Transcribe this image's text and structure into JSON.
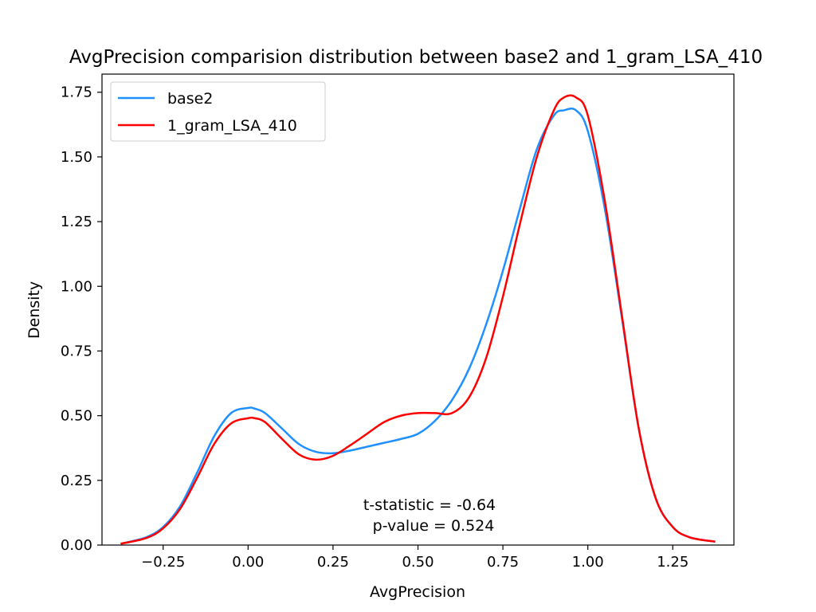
{
  "chart_data": {
    "type": "line",
    "title": "AvgPrecision comparision distribution between base2 and 1_gram_LSA_410",
    "xlabel": "AvgPrecision",
    "ylabel": "Density",
    "xlim": [
      -0.43,
      1.43
    ],
    "ylim": [
      0,
      1.82
    ],
    "xticks": [
      -0.25,
      0.0,
      0.25,
      0.5,
      0.75,
      1.0,
      1.25
    ],
    "xtick_labels": [
      "−0.25",
      "0.00",
      "0.25",
      "0.50",
      "0.75",
      "1.00",
      "1.25"
    ],
    "yticks": [
      0.0,
      0.25,
      0.5,
      0.75,
      1.0,
      1.25,
      1.5,
      1.75
    ],
    "ytick_labels": [
      "0.00",
      "0.25",
      "0.50",
      "0.75",
      "1.00",
      "1.25",
      "1.50",
      "1.75"
    ],
    "grid": false,
    "legend_position": "top-left",
    "annotations": [
      "t-statistic = -0.64",
      "p-value = 0.524"
    ],
    "series": [
      {
        "name": "base2",
        "color": "#1e90ff",
        "x": [
          -0.375,
          -0.3,
          -0.25,
          -0.2,
          -0.15,
          -0.1,
          -0.05,
          0.0,
          0.02,
          0.05,
          0.1,
          0.15,
          0.2,
          0.25,
          0.3,
          0.35,
          0.4,
          0.45,
          0.5,
          0.55,
          0.6,
          0.65,
          0.7,
          0.75,
          0.8,
          0.85,
          0.9,
          0.93,
          0.965,
          1.0,
          1.05,
          1.1,
          1.15,
          1.2,
          1.25,
          1.3,
          1.375
        ],
        "y": [
          0.005,
          0.03,
          0.07,
          0.15,
          0.28,
          0.42,
          0.51,
          0.53,
          0.527,
          0.51,
          0.45,
          0.39,
          0.36,
          0.355,
          0.365,
          0.38,
          0.395,
          0.41,
          0.43,
          0.48,
          0.56,
          0.68,
          0.85,
          1.06,
          1.3,
          1.53,
          1.66,
          1.68,
          1.68,
          1.6,
          1.3,
          0.88,
          0.45,
          0.18,
          0.07,
          0.03,
          0.013
        ]
      },
      {
        "name": "1_gram_LSA_410",
        "color": "#ff0000",
        "x": [
          -0.375,
          -0.3,
          -0.25,
          -0.2,
          -0.15,
          -0.1,
          -0.05,
          0.0,
          0.02,
          0.05,
          0.1,
          0.15,
          0.2,
          0.25,
          0.3,
          0.35,
          0.4,
          0.45,
          0.5,
          0.55,
          0.6,
          0.65,
          0.7,
          0.75,
          0.8,
          0.85,
          0.9,
          0.93,
          0.965,
          1.0,
          1.05,
          1.1,
          1.15,
          1.2,
          1.25,
          1.3,
          1.375
        ],
        "y": [
          0.005,
          0.027,
          0.065,
          0.14,
          0.26,
          0.39,
          0.47,
          0.49,
          0.49,
          0.475,
          0.41,
          0.35,
          0.33,
          0.345,
          0.385,
          0.43,
          0.475,
          0.5,
          0.51,
          0.51,
          0.51,
          0.57,
          0.72,
          0.96,
          1.24,
          1.5,
          1.68,
          1.73,
          1.73,
          1.66,
          1.33,
          0.89,
          0.45,
          0.18,
          0.07,
          0.03,
          0.013
        ]
      }
    ]
  }
}
